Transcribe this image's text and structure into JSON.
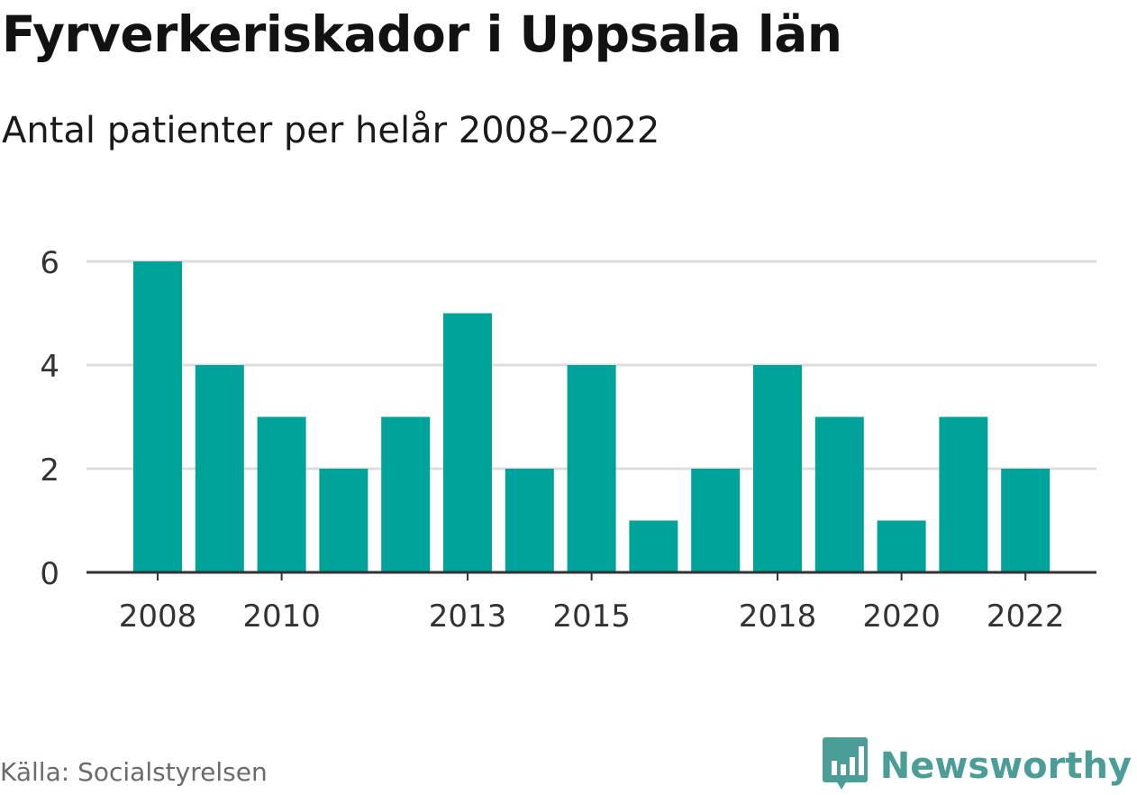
{
  "header": {
    "title": "Fyrverkeriskador i Uppsala län",
    "subtitle": "Antal patienter per helår 2008–2022"
  },
  "footer": {
    "source": "Källa: Socialstyrelsen",
    "brand": "Newsworthy",
    "brand_icon": "newsworthy-logo-icon"
  },
  "colors": {
    "bar": "#00a39a",
    "grid": "#dddddd",
    "axis": "#333333",
    "brand": "#4a9e97"
  },
  "chart_data": {
    "type": "bar",
    "categories": [
      "2008",
      "2009",
      "2010",
      "2011",
      "2012",
      "2013",
      "2014",
      "2015",
      "2016",
      "2017",
      "2018",
      "2019",
      "2020",
      "2021",
      "2022"
    ],
    "values": [
      6,
      4,
      3,
      2,
      3,
      5,
      2,
      4,
      1,
      2,
      4,
      3,
      1,
      3,
      2
    ],
    "x_tick_labels": [
      "2008",
      "2010",
      "2013",
      "2015",
      "2018",
      "2020",
      "2022"
    ],
    "y_ticks": [
      0,
      2,
      4,
      6
    ],
    "ylim": [
      0,
      6
    ],
    "grid": true,
    "legend": "none"
  }
}
